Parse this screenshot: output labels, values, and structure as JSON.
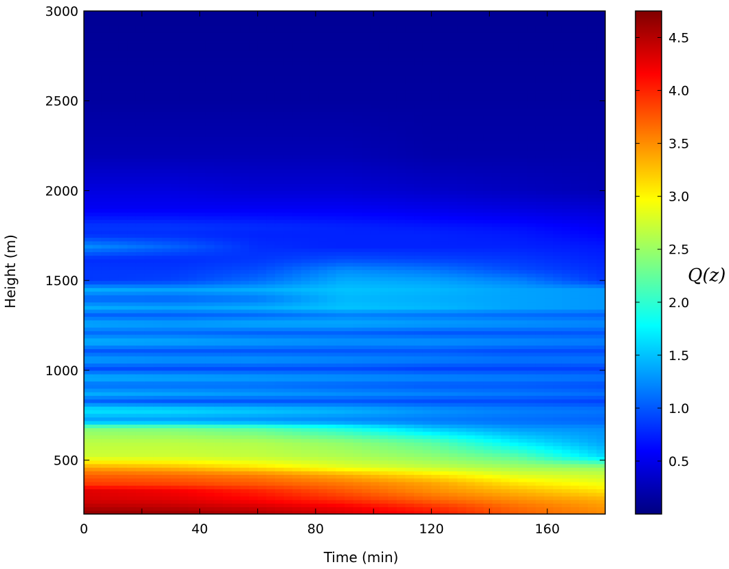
{
  "chart_data": {
    "type": "heatmap",
    "title": "",
    "xlabel": "Time (min)",
    "ylabel": "Height (m)",
    "colorbar_label": "Q(z)",
    "xlim": [
      0,
      180
    ],
    "ylim": [
      200,
      3000
    ],
    "x_ticks": [
      0,
      40,
      80,
      120,
      160
    ],
    "x_tick_labels": [
      "0",
      "40",
      "80",
      "120",
      "160"
    ],
    "y_ticks": [
      500,
      1000,
      1500,
      2000,
      2500,
      3000
    ],
    "y_tick_labels": [
      "500",
      "1000",
      "1500",
      "2000",
      "2500",
      "3000"
    ],
    "colorbar_range": [
      0.0,
      4.75
    ],
    "colorbar_ticks": [
      0.5,
      1.0,
      1.5,
      2.0,
      2.5,
      3.0,
      3.5,
      4.0,
      4.5
    ],
    "colorbar_tick_labels": [
      "0.5",
      "1.0",
      "1.5",
      "2.0",
      "2.5",
      "3.0",
      "3.5",
      "4.0",
      "4.5"
    ],
    "colormap": "jet",
    "grid": false,
    "time_samples": [
      0,
      30,
      60,
      90,
      120,
      150,
      180
    ],
    "layers": [
      {
        "z": 210,
        "q": [
          4.65,
          4.6,
          4.5,
          4.3,
          4.05,
          3.7,
          3.5
        ]
      },
      {
        "z": 240,
        "q": [
          4.5,
          4.45,
          4.35,
          4.2,
          3.95,
          3.65,
          3.45
        ]
      },
      {
        "z": 280,
        "q": [
          4.35,
          4.3,
          4.15,
          3.95,
          3.7,
          3.5,
          3.35
        ]
      },
      {
        "z": 330,
        "q": [
          4.3,
          4.2,
          4.0,
          3.75,
          3.5,
          3.3,
          3.1
        ]
      },
      {
        "z": 370,
        "q": [
          3.9,
          3.85,
          3.75,
          3.6,
          3.4,
          3.1,
          2.9
        ]
      },
      {
        "z": 420,
        "q": [
          3.7,
          3.65,
          3.55,
          3.35,
          3.1,
          2.8,
          2.7
        ]
      },
      {
        "z": 460,
        "q": [
          3.4,
          3.3,
          3.1,
          2.85,
          2.7,
          2.55,
          2.5
        ]
      },
      {
        "z": 520,
        "q": [
          2.75,
          2.75,
          2.7,
          2.6,
          2.45,
          2.2,
          1.6
        ]
      },
      {
        "z": 600,
        "q": [
          2.65,
          2.65,
          2.6,
          2.45,
          2.2,
          1.7,
          1.35
        ]
      },
      {
        "z": 680,
        "q": [
          2.4,
          2.35,
          2.2,
          1.9,
          1.5,
          1.3,
          1.25
        ]
      },
      {
        "z": 720,
        "q": [
          1.3,
          1.3,
          1.25,
          1.2,
          1.15,
          1.1,
          1.05
        ]
      },
      {
        "z": 780,
        "q": [
          1.7,
          1.65,
          1.55,
          1.45,
          1.3,
          1.2,
          1.15
        ]
      },
      {
        "z": 830,
        "q": [
          1.05,
          1.0,
          1.0,
          1.0,
          0.95,
          0.95,
          0.9
        ]
      },
      {
        "z": 870,
        "q": [
          1.4,
          1.35,
          1.3,
          1.25,
          1.2,
          1.15,
          1.1
        ]
      },
      {
        "z": 920,
        "q": [
          1.1,
          1.1,
          1.1,
          1.05,
          1.0,
          1.0,
          0.95
        ]
      },
      {
        "z": 960,
        "q": [
          1.45,
          1.4,
          1.35,
          1.3,
          1.25,
          1.2,
          1.15
        ]
      },
      {
        "z": 1010,
        "q": [
          0.95,
          0.95,
          0.95,
          0.95,
          0.9,
          0.9,
          0.9
        ]
      },
      {
        "z": 1060,
        "q": [
          1.35,
          1.3,
          1.3,
          1.25,
          1.2,
          1.15,
          1.15
        ]
      },
      {
        "z": 1110,
        "q": [
          1.0,
          1.0,
          1.0,
          1.0,
          1.0,
          0.95,
          0.95
        ]
      },
      {
        "z": 1160,
        "q": [
          1.45,
          1.4,
          1.35,
          1.3,
          1.3,
          1.25,
          1.2
        ]
      },
      {
        "z": 1210,
        "q": [
          1.1,
          1.1,
          1.05,
          1.05,
          1.0,
          1.0,
          1.0
        ]
      },
      {
        "z": 1260,
        "q": [
          1.4,
          1.35,
          1.4,
          1.4,
          1.35,
          1.3,
          1.25
        ]
      },
      {
        "z": 1310,
        "q": [
          1.05,
          1.05,
          1.1,
          1.2,
          1.15,
          1.1,
          1.05
        ]
      },
      {
        "z": 1350,
        "q": [
          1.4,
          1.35,
          1.4,
          1.5,
          1.45,
          1.35,
          1.3
        ]
      },
      {
        "z": 1400,
        "q": [
          1.05,
          1.05,
          1.15,
          1.45,
          1.4,
          1.35,
          1.3
        ]
      },
      {
        "z": 1450,
        "q": [
          1.4,
          1.35,
          1.4,
          1.5,
          1.45,
          1.35,
          1.3
        ]
      },
      {
        "z": 1500,
        "q": [
          0.85,
          0.9,
          1.1,
          1.4,
          1.35,
          1.2,
          0.85
        ]
      },
      {
        "z": 1560,
        "q": [
          0.85,
          0.85,
          0.95,
          1.25,
          1.15,
          0.95,
          0.8
        ]
      },
      {
        "z": 1620,
        "q": [
          0.8,
          0.8,
          0.85,
          0.95,
          0.9,
          0.85,
          0.75
        ]
      },
      {
        "z": 1690,
        "q": [
          1.25,
          1.05,
          0.8,
          0.75,
          0.75,
          0.75,
          0.7
        ]
      },
      {
        "z": 1760,
        "q": [
          0.8,
          0.8,
          0.75,
          0.75,
          0.75,
          0.7,
          0.6
        ]
      },
      {
        "z": 1800,
        "q": [
          0.85,
          0.85,
          0.8,
          0.75,
          0.7,
          0.65,
          0.55
        ]
      },
      {
        "z": 1900,
        "q": [
          0.55,
          0.55,
          0.55,
          0.55,
          0.5,
          0.45,
          0.4
        ]
      },
      {
        "z": 2000,
        "q": [
          0.45,
          0.45,
          0.4,
          0.4,
          0.35,
          0.3,
          0.25
        ]
      },
      {
        "z": 2200,
        "q": [
          0.25,
          0.25,
          0.25,
          0.25,
          0.2,
          0.2,
          0.2
        ]
      },
      {
        "z": 2500,
        "q": [
          0.15,
          0.15,
          0.15,
          0.15,
          0.15,
          0.15,
          0.15
        ]
      },
      {
        "z": 3000,
        "q": [
          0.1,
          0.1,
          0.1,
          0.1,
          0.1,
          0.1,
          0.1
        ]
      }
    ]
  }
}
